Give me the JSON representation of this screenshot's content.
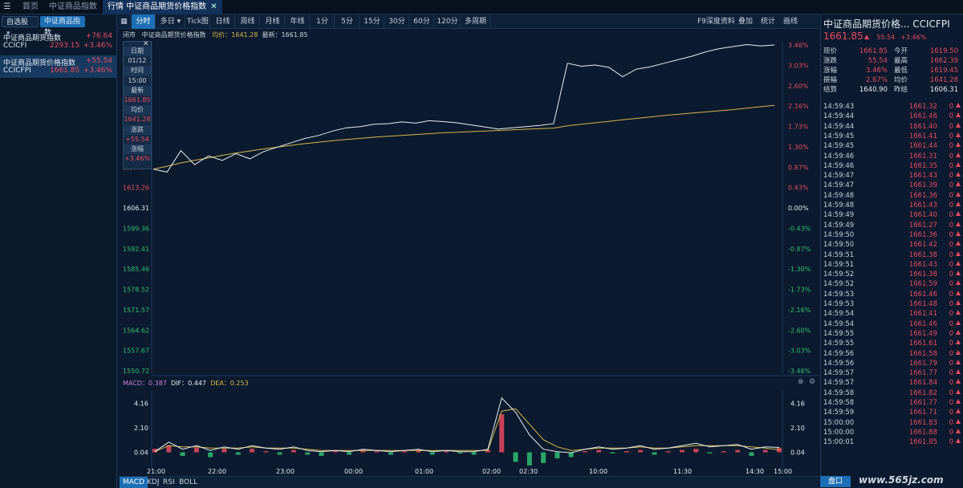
{
  "tabs": [
    {
      "label": "首页"
    },
    {
      "label": "中证商品指数"
    },
    {
      "label": "行情  中证商品期货价格指数"
    }
  ],
  "left": {
    "filter_button": "自选股",
    "filter_chevron": "▾",
    "active_filter": "中证商品指数",
    "items": [
      {
        "name": "中证商品期货指数",
        "change": "+76.64",
        "code": "CCICFI",
        "price": "2293.15",
        "pct": "+3.46%"
      },
      {
        "name": "中证商品期货价格指数",
        "change": "+55.54",
        "code": "CCICFPI",
        "price": "1661.85",
        "pct": "+3.46%"
      }
    ]
  },
  "toolbar": {
    "periods": [
      "分时",
      "多日",
      "Tick图",
      "日线",
      "周线",
      "月线",
      "年线",
      "1分",
      "5分",
      "15分",
      "30分",
      "60分",
      "120分",
      "多周期"
    ],
    "right_items": [
      "F9深度资料",
      "叠加",
      "统计",
      "画线"
    ]
  },
  "info_bar": {
    "market": "闭市",
    "name": "中证商品期货价格指数",
    "avg_label": "均价：1641.28",
    "last_label": "最新：1661.85"
  },
  "tooltip": {
    "labels": [
      "日期",
      "时间",
      "最新",
      "均价",
      "涨跌",
      "涨幅"
    ],
    "values": [
      "01/12",
      "15:00",
      "1661.85",
      "1641.28",
      "+55.54",
      "+3.46%"
    ]
  },
  "macd_bar": {
    "macd": "MACD：0.387",
    "dif": "DIF：0.447",
    "dea": "DEA：0.253"
  },
  "bottom_tabs": [
    "MACD",
    "KDJ",
    "RSI",
    "BOLL"
  ],
  "right": {
    "title": "中证商品期货价格... CCICFPI",
    "price": "1661.85",
    "change": "55.54",
    "pct": "+3.46%",
    "quote": [
      {
        "l1": "现价",
        "v1": "1661.85",
        "l2": "今开",
        "v2": "1619.50"
      },
      {
        "l1": "涨跌",
        "v1": "55.54",
        "l2": "最高",
        "v2": "1662.39"
      },
      {
        "l1": "涨幅",
        "v1": "3.46%",
        "l2": "最低",
        "v2": "1619.45"
      },
      {
        "l1": "振幅",
        "v1": "2.67%",
        "l2": "均价",
        "v2": "1641.28"
      },
      {
        "l1": "结算",
        "v1": "1640.90",
        "l2": "昨结",
        "v2": "1606.31"
      }
    ],
    "ticks": [
      {
        "t": "14:59:43",
        "p": "1661.32",
        "v": "0"
      },
      {
        "t": "14:59:44",
        "p": "1661.46",
        "v": "0"
      },
      {
        "t": "14:59:44",
        "p": "1661.40",
        "v": "0"
      },
      {
        "t": "14:59:45",
        "p": "1661.41",
        "v": "0"
      },
      {
        "t": "14:59:45",
        "p": "1661.44",
        "v": "0"
      },
      {
        "t": "14:59:46",
        "p": "1661.31",
        "v": "0"
      },
      {
        "t": "14:59:46",
        "p": "1661.35",
        "v": "0"
      },
      {
        "t": "14:59:47",
        "p": "1661.43",
        "v": "0"
      },
      {
        "t": "14:59:47",
        "p": "1661.39",
        "v": "0"
      },
      {
        "t": "14:59:48",
        "p": "1661.36",
        "v": "0"
      },
      {
        "t": "14:59:48",
        "p": "1661.43",
        "v": "0"
      },
      {
        "t": "14:59:49",
        "p": "1661.40",
        "v": "0"
      },
      {
        "t": "14:59:49",
        "p": "1661.27",
        "v": "0"
      },
      {
        "t": "14:59:50",
        "p": "1661.36",
        "v": "0"
      },
      {
        "t": "14:59:50",
        "p": "1661.42",
        "v": "0"
      },
      {
        "t": "14:59:51",
        "p": "1661.38",
        "v": "0"
      },
      {
        "t": "14:59:51",
        "p": "1661.43",
        "v": "0"
      },
      {
        "t": "14:59:52",
        "p": "1661.38",
        "v": "0"
      },
      {
        "t": "14:59:52",
        "p": "1661.59",
        "v": "0"
      },
      {
        "t": "14:59:53",
        "p": "1661.46",
        "v": "0"
      },
      {
        "t": "14:59:53",
        "p": "1661.48",
        "v": "0"
      },
      {
        "t": "14:59:54",
        "p": "1661.41",
        "v": "0"
      },
      {
        "t": "14:59:54",
        "p": "1661.46",
        "v": "0"
      },
      {
        "t": "14:59:55",
        "p": "1661.49",
        "v": "0"
      },
      {
        "t": "14:59:55",
        "p": "1661.61",
        "v": "0"
      },
      {
        "t": "14:59:56",
        "p": "1661.58",
        "v": "0"
      },
      {
        "t": "14:59:56",
        "p": "1661.79",
        "v": "0"
      },
      {
        "t": "14:59:57",
        "p": "1661.77",
        "v": "0"
      },
      {
        "t": "14:59:57",
        "p": "1661.84",
        "v": "0"
      },
      {
        "t": "14:59:58",
        "p": "1661.82",
        "v": "0"
      },
      {
        "t": "14:59:58",
        "p": "1661.77",
        "v": "0"
      },
      {
        "t": "14:59:59",
        "p": "1661.71",
        "v": "0"
      },
      {
        "t": "15:00:00",
        "p": "1661.83",
        "v": "0"
      },
      {
        "t": "15:00:00",
        "p": "1661.88",
        "v": "0"
      },
      {
        "t": "15:00:01",
        "p": "1661.85",
        "v": "0"
      }
    ],
    "bottom_button": "盘口"
  },
  "watermark": "www.565jz.com",
  "colors": {
    "up": "#e84a5f",
    "down": "#2fbf71",
    "accent": "#1d6fb5",
    "price_line": "#e8eef5",
    "avg_line": "#d8b84a"
  },
  "chart_data": {
    "type": "line",
    "prev_close": 1606.31,
    "left_ticks": [
      "3.46%",
      "3.03%",
      "2.60%",
      "2.16%",
      "1.73%",
      "1.30%",
      "0.87%",
      "1613.26",
      "1606.31",
      "1599.36",
      "1592.41",
      "1585.46",
      "1578.52",
      "1571.57",
      "1564.62",
      "1557.67",
      "1550.72"
    ],
    "right_ticks": [
      "3.46%",
      "3.03%",
      "2.60%",
      "2.16%",
      "1.73%",
      "1.30%",
      "0.87%",
      "0.43%",
      "0.00%",
      "-0.43%",
      "-0.87%",
      "-1.30%",
      "-1.73%",
      "-2.16%",
      "-2.60%",
      "-3.03%",
      "-3.46%"
    ],
    "x_ticks": [
      "21:00",
      "22:00",
      "23:00",
      "00:00",
      "01:00",
      "02:00",
      "02:30",
      "10:00",
      "11:30",
      "14:30",
      "15:00"
    ],
    "ylim": [
      1550.72,
      1661.85
    ],
    "price": [
      1619.5,
      1618.5,
      1625.8,
      1621,
      1624,
      1622.5,
      1624.8,
      1623,
      1625.5,
      1627,
      1628.5,
      1630,
      1631,
      1632.5,
      1633.6,
      1634,
      1634.8,
      1635,
      1635.6,
      1635.2,
      1636,
      1635.7,
      1635.3,
      1634.6,
      1633.9,
      1633.2,
      1633.6,
      1634,
      1634.4,
      1635,
      1655.6,
      1654.6,
      1655,
      1654.2,
      1651,
      1653.6,
      1654.4,
      1655.6,
      1656.8,
      1658,
      1659.5,
      1660.6,
      1661.3,
      1662,
      1661.5,
      1661.85
    ],
    "avg": [
      1619.5,
      1620.5,
      1621.6,
      1622.5,
      1623.3,
      1624.2,
      1625,
      1625.7,
      1626.4,
      1627,
      1627.6,
      1628.2,
      1628.7,
      1629.2,
      1629.6,
      1630,
      1630.4,
      1630.7,
      1631,
      1631.3,
      1631.6,
      1631.9,
      1632.1,
      1632.3,
      1632.5,
      1632.7,
      1632.9,
      1633.1,
      1633.3,
      1633.5,
      1634.3,
      1634.8,
      1635.3,
      1635.8,
      1636.3,
      1636.8,
      1637.3,
      1637.8,
      1638.2,
      1638.6,
      1639,
      1639.4,
      1639.8,
      1640.3,
      1640.8,
      1641.28
    ],
    "macd_ticks": [
      "4.16",
      "2.10",
      "0.04"
    ],
    "macd_dif": [
      0.1,
      0.9,
      0.3,
      0.6,
      0.2,
      0.5,
      0.3,
      0.6,
      0.4,
      0.3,
      0.5,
      0.2,
      0.1,
      0.2,
      0.1,
      0.3,
      0.2,
      0.1,
      0.2,
      0.3,
      0.1,
      0.2,
      0.1,
      0.1,
      0.3,
      4.6,
      3.4,
      1.5,
      0.3,
      0.1,
      0.0,
      0.3,
      0.5,
      0.3,
      0.4,
      0.6,
      0.3,
      0.4,
      0.6,
      0.8,
      0.5,
      0.6,
      0.7,
      0.3,
      0.5,
      0.45
    ],
    "macd_dea": [
      0.1,
      0.6,
      0.5,
      0.5,
      0.4,
      0.4,
      0.4,
      0.5,
      0.4,
      0.4,
      0.4,
      0.3,
      0.2,
      0.2,
      0.2,
      0.2,
      0.2,
      0.2,
      0.2,
      0.2,
      0.2,
      0.2,
      0.2,
      0.2,
      0.2,
      3.5,
      3.7,
      2.4,
      1.1,
      0.5,
      0.2,
      0.3,
      0.4,
      0.4,
      0.4,
      0.5,
      0.4,
      0.4,
      0.5,
      0.6,
      0.6,
      0.6,
      0.6,
      0.5,
      0.4,
      0.25
    ],
    "macd_hist": [
      0.3,
      0.6,
      -0.3,
      0.4,
      -0.4,
      0.3,
      -0.2,
      0.3,
      0.1,
      -0.2,
      0.2,
      -0.2,
      -0.3,
      0.1,
      -0.2,
      0.2,
      0.1,
      -0.2,
      0.1,
      0.2,
      -0.2,
      0.1,
      -0.1,
      -0.2,
      0.2,
      3.2,
      -0.8,
      -1.1,
      -0.9,
      -0.5,
      -0.4,
      0.1,
      0.2,
      -0.1,
      0.1,
      0.2,
      -0.2,
      0.1,
      0.2,
      0.3,
      -0.1,
      0.1,
      0.2,
      -0.3,
      0.2,
      0.39
    ]
  }
}
